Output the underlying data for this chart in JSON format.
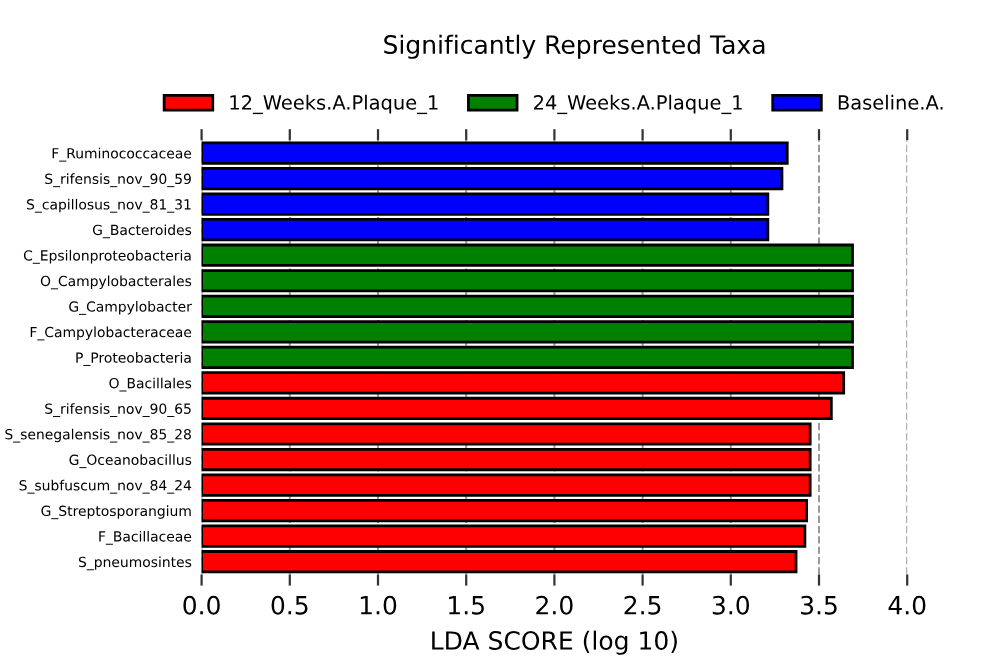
{
  "chart_data": {
    "type": "bar",
    "orientation": "horizontal",
    "title": "Significantly Represented Taxa",
    "xlabel": "LDA SCORE (log 10)",
    "categories": [
      "F_Ruminococcaceae",
      "S_rifensis_nov_90_59",
      "S_capillosus_nov_81_31",
      "G_Bacteroides",
      "C_Epsilonproteobacteria",
      "O_Campylobacterales",
      "G_Campylobacter",
      "F_Campylobacteraceae",
      "P_Proteobacteria",
      "O_Bacillales",
      "S_rifensis_nov_90_65",
      "S_senegalensis_nov_85_28",
      "G_Oceanobacillus",
      "S_subfuscum_nov_84_24",
      "G_Streptosporangium",
      "F_Bacillaceae",
      "S_pneumosintes"
    ],
    "series": [
      {
        "name": "12_Weeks.A.Plaque_1",
        "color": "#ff0000",
        "values": [
          null,
          null,
          null,
          null,
          null,
          null,
          null,
          null,
          null,
          3.64,
          3.57,
          3.45,
          3.45,
          3.45,
          3.43,
          3.42,
          3.37
        ]
      },
      {
        "name": "24_Weeks.A.Plaque_1",
        "color": "#008000",
        "values": [
          null,
          null,
          null,
          null,
          3.69,
          3.69,
          3.69,
          3.69,
          3.69,
          null,
          null,
          null,
          null,
          null,
          null,
          null,
          null
        ]
      },
      {
        "name": "Baseline.A.",
        "color": "#0000ff",
        "values": [
          3.32,
          3.29,
          3.21,
          3.21,
          null,
          null,
          null,
          null,
          null,
          null,
          null,
          null,
          null,
          null,
          null,
          null,
          null
        ]
      }
    ],
    "xlim": [
      0,
      4
    ],
    "xticks": [
      {
        "value": 0,
        "label": "0.0"
      },
      0.5,
      {
        "value": 1,
        "label": "1.0"
      },
      1.5,
      {
        "value": 2,
        "label": "2.0"
      },
      2.5,
      {
        "value": 3,
        "label": "3.0"
      },
      3.5,
      {
        "value": 4,
        "label": "4.0"
      }
    ],
    "grid": "x",
    "legend": "top"
  }
}
